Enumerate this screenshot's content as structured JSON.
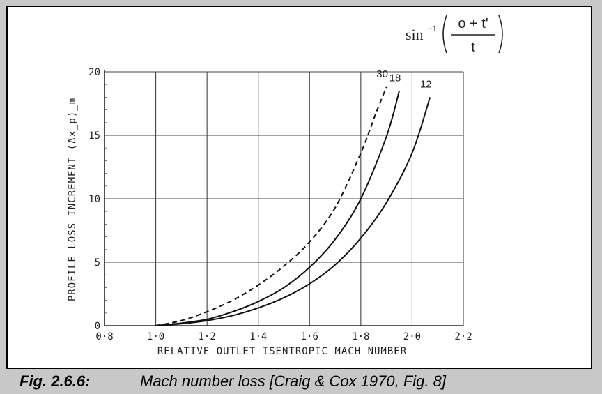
{
  "caption": {
    "fig": "Fig. 2.6.6:",
    "text": "Mach number loss [Craig & Cox 1970, Fig. 8]"
  },
  "formula": {
    "func": "sin",
    "exp": "−1",
    "numerator": "o + t'",
    "denominator": "t"
  },
  "chart_data": {
    "type": "line",
    "xlabel": "RELATIVE OUTLET ISENTROPIC MACH NUMBER",
    "ylabel": "PROFILE LOSS INCREMENT (Δx_p)_m",
    "xlim": [
      0.8,
      2.2
    ],
    "ylim": [
      0,
      20
    ],
    "x_ticks": [
      0.8,
      1.0,
      1.2,
      1.4,
      1.6,
      1.8,
      2.0,
      2.2
    ],
    "x_tick_labels": [
      "0·8",
      "1·0",
      "1·2",
      "1·4",
      "1·6",
      "1·8",
      "2·0",
      "2·2"
    ],
    "y_ticks": [
      0,
      5,
      10,
      15,
      20
    ],
    "y_tick_labels": [
      "0",
      "5",
      "10",
      "15",
      "20"
    ],
    "grid": true,
    "series": [
      {
        "name": "30",
        "style": "dashed",
        "x": [
          1.0,
          1.1,
          1.2,
          1.3,
          1.4,
          1.5,
          1.6,
          1.7,
          1.8,
          1.86,
          1.9
        ],
        "y": [
          0,
          0.4,
          1.1,
          2.0,
          3.2,
          4.7,
          6.6,
          9.3,
          13.6,
          16.8,
          18.8
        ]
      },
      {
        "name": "18",
        "style": "solid",
        "x": [
          1.0,
          1.1,
          1.2,
          1.3,
          1.4,
          1.5,
          1.6,
          1.7,
          1.8,
          1.9,
          1.95
        ],
        "y": [
          0,
          0.2,
          0.5,
          1.1,
          1.9,
          3.0,
          4.6,
          6.8,
          10.0,
          14.9,
          18.5
        ]
      },
      {
        "name": "12",
        "style": "solid",
        "x": [
          1.0,
          1.1,
          1.2,
          1.3,
          1.4,
          1.5,
          1.6,
          1.7,
          1.8,
          1.9,
          2.0,
          2.07
        ],
        "y": [
          0,
          0.15,
          0.4,
          0.8,
          1.4,
          2.2,
          3.3,
          4.8,
          6.9,
          9.7,
          13.6,
          18.0
        ]
      }
    ]
  }
}
